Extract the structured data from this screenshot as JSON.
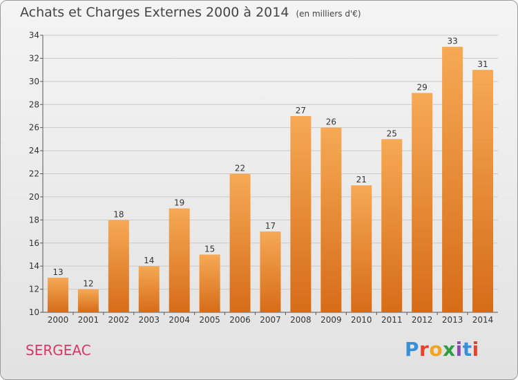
{
  "title": "Achats et Charges Externes 2000 à 2014",
  "unit": "(en milliers d'€)",
  "commune": "SERGEAC",
  "logo": {
    "letters": [
      "P",
      "r",
      "o",
      "x",
      "i",
      "t",
      "i"
    ],
    "colors": [
      "#3a8fd6",
      "#e8412c",
      "#f0a420",
      "#2e9e43",
      "#8b4bb4",
      "#3a8fd6",
      "#e8412c"
    ]
  },
  "colors": {
    "bar_light": "#f6a955",
    "bar_dark": "#d66c18",
    "grid": "#c9c9c9"
  },
  "chart_data": {
    "type": "bar",
    "categories": [
      "2000",
      "2001",
      "2002",
      "2003",
      "2004",
      "2005",
      "2006",
      "2007",
      "2008",
      "2009",
      "2010",
      "2011",
      "2012",
      "2013",
      "2014"
    ],
    "values": [
      13,
      12,
      18,
      14,
      19,
      15,
      22,
      17,
      27,
      26,
      21,
      25,
      29,
      33,
      31
    ],
    "ylim": [
      10,
      34
    ],
    "yticks": [
      10,
      12,
      14,
      16,
      18,
      20,
      22,
      24,
      26,
      28,
      30,
      32,
      34
    ],
    "grid": true
  }
}
